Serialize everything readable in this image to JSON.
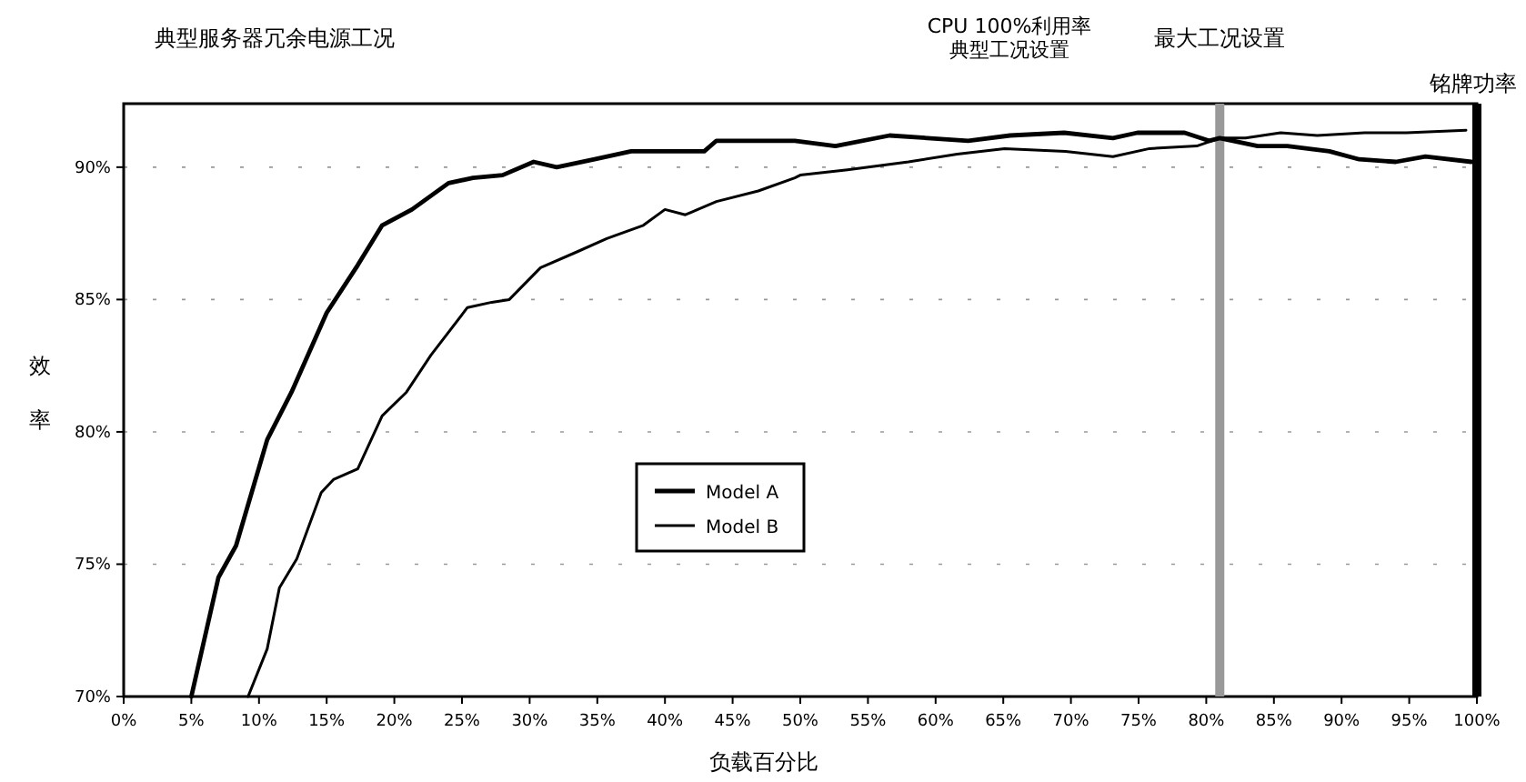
{
  "chart_data": {
    "type": "line",
    "title": "典型服务器冗余电源工况",
    "xlabel": "负载百分比",
    "ylabel": "效率",
    "annotations": [
      "CPU 100%利用率",
      "典型工况设置"
    ],
    "xlim": [
      0,
      100
    ],
    "ylim": [
      70,
      92.4
    ],
    "xticks": [
      {
        "value": 0,
        "label": "0%"
      },
      {
        "value": 5,
        "label": "5%"
      },
      {
        "value": 10,
        "label": "10%"
      },
      {
        "value": 15,
        "label": "15%"
      },
      {
        "value": 20,
        "label": "20%"
      },
      {
        "value": 25,
        "label": "25%"
      },
      {
        "value": 30,
        "label": "30%"
      },
      {
        "value": 35,
        "label": "35%"
      },
      {
        "value": 40,
        "label": "40%"
      },
      {
        "value": 45,
        "label": "45%"
      },
      {
        "value": 50,
        "label": "50%"
      },
      {
        "value": 55,
        "label": "55%"
      },
      {
        "value": 60,
        "label": "60%"
      },
      {
        "value": 65,
        "label": "65%"
      },
      {
        "value": 70,
        "label": "70%"
      },
      {
        "value": 75,
        "label": "75%"
      },
      {
        "value": 80,
        "label": "80%"
      },
      {
        "value": 85,
        "label": "85%"
      },
      {
        "value": 90,
        "label": "90%"
      },
      {
        "value": 95,
        "label": "95%"
      },
      {
        "value": 100,
        "label": "100%"
      }
    ],
    "yticks": [
      {
        "value": 70,
        "label": "70%"
      },
      {
        "value": 75,
        "label": "75%"
      },
      {
        "value": 80,
        "label": "80%"
      },
      {
        "value": 85,
        "label": "85%"
      },
      {
        "value": 90,
        "label": "90%"
      }
    ],
    "grid": "y",
    "legend": "center",
    "ref_lines": [
      {
        "axis": "x",
        "value": 81,
        "label": "最大工况设置",
        "color": "#999999"
      },
      {
        "axis": "x",
        "value": 100,
        "label": "铭牌功率",
        "color": "#000000"
      }
    ],
    "series": [
      {
        "name": "Model A",
        "color": "#000000",
        "x": [
          5,
          7,
          8.3,
          10.6,
          12.4,
          15,
          17.3,
          19.1,
          21.3,
          24,
          25.8,
          28,
          30.3,
          32,
          34.8,
          37.5,
          41,
          42.9,
          43.8,
          49.6,
          52.6,
          56.6,
          62.4,
          65.5,
          69.5,
          73.1,
          74.9,
          78.4,
          80.2,
          81,
          83.8,
          86,
          89.1,
          91.3,
          94,
          96.2,
          99.6
        ],
        "values": [
          70,
          74.5,
          75.7,
          79.7,
          81.5,
          84.5,
          86.3,
          87.8,
          88.4,
          89.4,
          89.6,
          89.7,
          90.2,
          90,
          90.3,
          90.6,
          90.6,
          90.6,
          91,
          91,
          90.8,
          91.2,
          91,
          91.2,
          91.3,
          91.1,
          91.3,
          91.3,
          91,
          91.1,
          90.8,
          90.8,
          90.6,
          90.3,
          90.2,
          90.4,
          90.2
        ]
      },
      {
        "name": "Model B",
        "color": "#000000",
        "x": [
          9.2,
          10.6,
          11.5,
          12.8,
          14.6,
          15.5,
          17.3,
          19.1,
          20.9,
          22.7,
          25.4,
          27.2,
          28.5,
          30.8,
          33.5,
          35.7,
          38.4,
          40,
          41.5,
          43.8,
          46.9,
          49.6,
          50,
          53.5,
          58,
          61.6,
          65.1,
          69.6,
          73.1,
          75.8,
          79.3,
          81,
          82.9,
          85.5,
          88.2,
          91.7,
          94.8,
          99.2
        ],
        "values": [
          70,
          71.8,
          74.1,
          75.2,
          77.7,
          78.2,
          78.6,
          80.6,
          81.5,
          82.9,
          84.7,
          84.9,
          85,
          86.2,
          86.8,
          87.3,
          87.8,
          88.4,
          88.2,
          88.7,
          89.1,
          89.6,
          89.7,
          89.9,
          90.2,
          90.5,
          90.7,
          90.6,
          90.4,
          90.7,
          90.8,
          91.1,
          91.1,
          91.3,
          91.2,
          91.3,
          91.3,
          91.4
        ]
      }
    ]
  }
}
